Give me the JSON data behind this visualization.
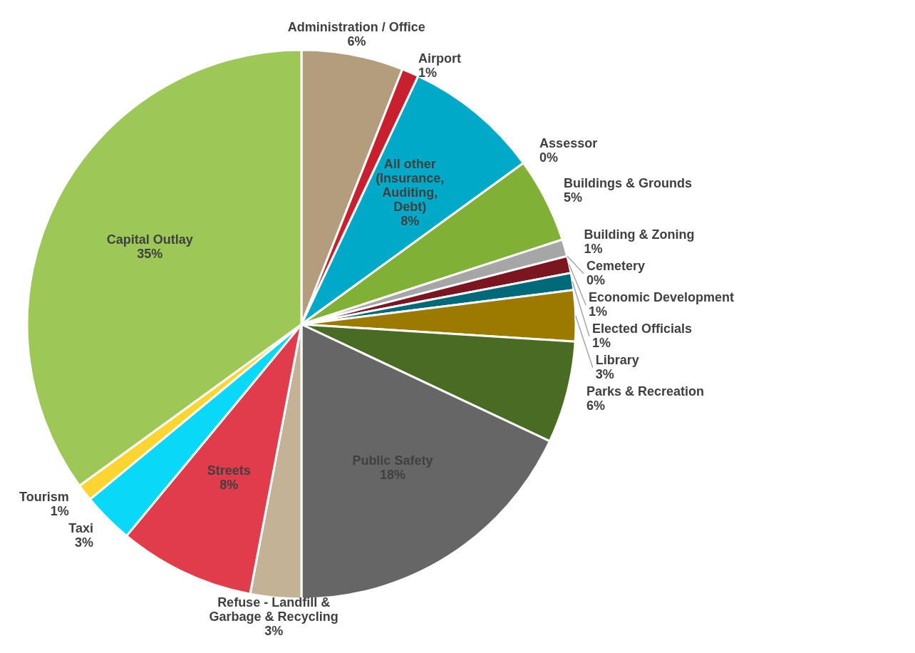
{
  "chart_data": {
    "type": "pie",
    "categories": [
      "Administration / Office",
      "Airport",
      "All other (Insurance, Auditing, Debt)",
      "Assessor",
      "Buildings & Grounds",
      "Building & Zoning",
      "Cemetery",
      "Economic Development",
      "Elected Officials",
      "Library",
      "Parks & Recreation",
      "Public Safety",
      "Refuse - Landfill & Garbage & Recycling",
      "Streets",
      "Taxi",
      "Tourism",
      "Capital Outlay"
    ],
    "values": [
      6,
      1,
      8,
      0,
      5,
      1,
      0,
      1,
      1,
      3,
      6,
      18,
      3,
      8,
      3,
      1,
      35
    ],
    "value_labels": [
      "6%",
      "1%",
      "8%",
      "0%",
      "5%",
      "1%",
      "0%",
      "1%",
      "1%",
      "3%",
      "6%",
      "18%",
      "3%",
      "8%",
      "3%",
      "1%",
      "35%"
    ],
    "colors": [
      "#b39d7c",
      "#c8202f",
      "#00a9c8",
      "#4f81bd",
      "#80b036",
      "#a6a6a6",
      "#5a5a5a",
      "#7b1520",
      "#006a7a",
      "#9c7a00",
      "#4a6b23",
      "#666666",
      "#c3b295",
      "#e03c4c",
      "#0ad8f8",
      "#fcd532",
      "#9dc857"
    ]
  }
}
